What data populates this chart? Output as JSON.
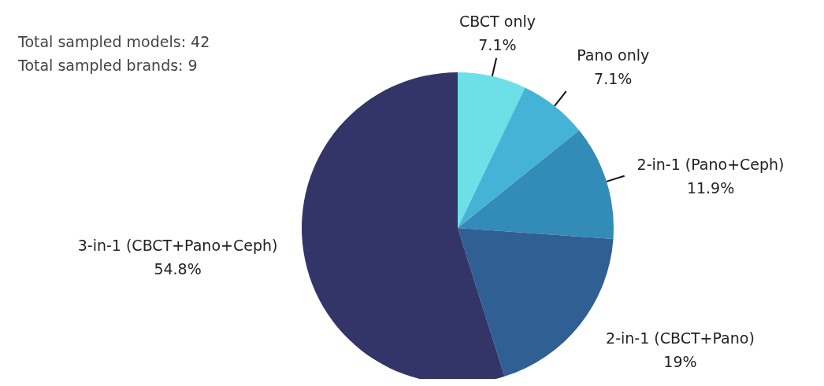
{
  "chart_data": {
    "type": "pie",
    "categories": [
      "CBCT only",
      "Pano only",
      "2-in-1 (Pano+Ceph)",
      "2-in-1 (CBCT+Pano)",
      "3-in-1 (CBCT+Pano+Ceph)"
    ],
    "values": [
      7.1,
      7.1,
      11.9,
      19,
      54.8
    ],
    "value_labels": [
      "7.1%",
      "7.1%",
      "11.9%",
      "19%",
      "54.8%"
    ],
    "colors": [
      "#6ce0e6",
      "#45b3d6",
      "#338bb8",
      "#305f94",
      "#333569"
    ],
    "annotations": [
      "Total sampled models: 42",
      "Total sampled brands: 9"
    ]
  }
}
